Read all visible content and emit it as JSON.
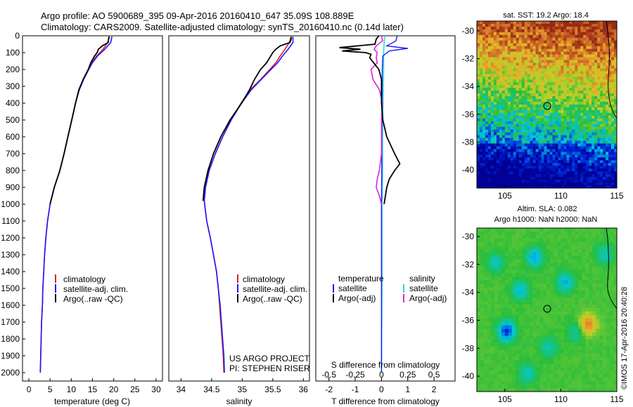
{
  "header": {
    "line1": "Argo profile: AO 5900689_395 09-Apr-2016 20160410_647 35.09S 108.889E",
    "line2": "Climatology: CARS2009. Satellite-adjusted climatology: synTS_20160410.nc (0.14d later)"
  },
  "depth_ticks": [
    "0",
    "100",
    "200",
    "300",
    "400",
    "500",
    "600",
    "700",
    "800",
    "900",
    "1000",
    "1100",
    "1200",
    "1300",
    "1400",
    "1500",
    "1600",
    "1700",
    "1800",
    "1900",
    "2000"
  ],
  "colors": {
    "climatology": "#e02020",
    "satellite": "#1a1aff",
    "argo": "#000000",
    "sal_satellite": "#22dddd",
    "sal_argo": "#dd22dd"
  },
  "chart_data": [
    {
      "type": "line",
      "xlabel": "temperature (deg C)",
      "xlim": [
        -1.5,
        31.5
      ],
      "ylim": [
        2050,
        0
      ],
      "xticks": [
        "0",
        "5",
        "10",
        "15",
        "20",
        "25",
        "30"
      ],
      "legend": [
        "climatology",
        "satellite-adj. clim.",
        "Argo(..raw -QC)"
      ],
      "series": [
        {
          "name": "climatology",
          "depth": [
            5,
            40,
            80,
            120,
            160,
            200,
            260,
            320,
            400,
            500,
            600,
            700,
            800,
            900,
            1000,
            1100,
            1200,
            1300,
            1400,
            1500,
            1600,
            1700,
            1800,
            1900,
            2000
          ],
          "values": [
            19.0,
            18.6,
            17.5,
            16.0,
            14.8,
            14.0,
            12.8,
            11.8,
            11.0,
            10.1,
            9.2,
            8.3,
            7.3,
            6.0,
            5.0,
            4.4,
            4.0,
            3.7,
            3.5,
            3.3,
            3.2,
            3.0,
            2.9,
            2.8,
            2.7
          ]
        },
        {
          "name": "satellite-adj. clim.",
          "depth": [
            5,
            40,
            80,
            120,
            160,
            200,
            260,
            320,
            400,
            500,
            600,
            700,
            800,
            900,
            1000,
            1100,
            1200,
            1300,
            1400,
            1500,
            1600,
            1700,
            1800,
            1900,
            2000
          ],
          "values": [
            19.6,
            19.3,
            17.9,
            16.2,
            15.0,
            14.1,
            12.9,
            11.9,
            11.0,
            10.1,
            9.2,
            8.3,
            7.3,
            6.0,
            5.0,
            4.4,
            4.0,
            3.7,
            3.5,
            3.3,
            3.2,
            3.0,
            2.9,
            2.8,
            2.7
          ]
        },
        {
          "name": "Argo(..raw -QC)",
          "depth": [
            5,
            20,
            40,
            60,
            80,
            100,
            120,
            160,
            200,
            260,
            320,
            400,
            500,
            600,
            700,
            800,
            900,
            1000
          ],
          "values": [
            18.9,
            18.8,
            18.7,
            17.3,
            16.4,
            16.1,
            15.5,
            14.6,
            14.0,
            12.8,
            11.8,
            11.0,
            10.1,
            9.2,
            8.3,
            7.3,
            6.0,
            5.0
          ]
        }
      ]
    },
    {
      "type": "line",
      "xlabel": "salinity",
      "xlim": [
        33.8,
        36.1
      ],
      "ylim": [
        2050,
        0
      ],
      "xticks": [
        "34",
        "34.5",
        "35",
        "35.5",
        "36"
      ],
      "legend": [
        "climatology",
        "satellite-adj. clim.",
        "Argo(..raw -QC)"
      ],
      "annotation": [
        "US ARGO PROJECT",
        "PI: STEPHEN RISER"
      ],
      "series": [
        {
          "name": "climatology",
          "depth": [
            5,
            40,
            80,
            120,
            160,
            200,
            260,
            320,
            400,
            500,
            600,
            700,
            800,
            900,
            980,
            1100,
            1200,
            1300,
            1400,
            1500,
            1600,
            1700,
            1800,
            1900,
            2000
          ],
          "values": [
            35.8,
            35.77,
            35.7,
            35.62,
            35.55,
            35.45,
            35.3,
            35.13,
            34.98,
            34.82,
            34.68,
            34.56,
            34.46,
            34.4,
            34.38,
            34.42,
            34.48,
            34.53,
            34.58,
            34.61,
            34.63,
            34.65,
            34.67,
            34.69,
            34.7
          ]
        },
        {
          "name": "satellite-adj. clim.",
          "depth": [
            5,
            40,
            80,
            120,
            160,
            200,
            260,
            320,
            400,
            500,
            600,
            700,
            800,
            900,
            980,
            1100,
            1200,
            1300,
            1400,
            1500,
            1600,
            1700,
            1800,
            1900,
            2000
          ],
          "values": [
            35.83,
            35.83,
            35.75,
            35.66,
            35.58,
            35.47,
            35.31,
            35.15,
            34.99,
            34.82,
            34.68,
            34.56,
            34.46,
            34.4,
            34.38,
            34.42,
            34.48,
            34.53,
            34.58,
            34.61,
            34.64,
            34.66,
            34.68,
            34.7,
            34.71
          ]
        },
        {
          "name": "Argo(..raw -QC)",
          "depth": [
            5,
            20,
            40,
            60,
            80,
            100,
            130,
            160,
            200,
            260,
            320,
            400,
            500,
            600,
            700,
            800,
            900,
            980
          ],
          "values": [
            35.8,
            35.8,
            35.78,
            35.62,
            35.55,
            35.5,
            35.45,
            35.4,
            35.3,
            35.2,
            35.12,
            34.99,
            34.8,
            34.65,
            34.53,
            34.44,
            34.38,
            34.36
          ]
        }
      ]
    },
    {
      "type": "line",
      "xlabel": "T difference from climatology",
      "x2label": "S difference from climatology",
      "xlim": [
        -2.5,
        2.8
      ],
      "x2lim": [
        -0.625,
        0.7
      ],
      "ylim": [
        2050,
        0
      ],
      "xticks": [
        "-2",
        "-1",
        "0",
        "1",
        "2"
      ],
      "x2ticks": [
        "-0.5",
        "-0.25",
        "0",
        "0.25",
        "0.5"
      ],
      "legend_titles": [
        "temperature",
        "salinity"
      ],
      "legend": [
        "satellite",
        "Argo(-adj)",
        "satellite",
        "Argo(-adj)"
      ],
      "series": [
        {
          "name": "T satellite",
          "depth": [
            0,
            30,
            60,
            75,
            90,
            120,
            200,
            400,
            600,
            800,
            1000,
            1500,
            2000
          ],
          "values": [
            0.6,
            0.55,
            0.2,
            1.0,
            0.3,
            0.05,
            0.03,
            0.02,
            0.01,
            0.01,
            0.0,
            0.0,
            0.0
          ]
        },
        {
          "name": "T Argo(-adj)",
          "depth": [
            0,
            20,
            50,
            70,
            80,
            90,
            100,
            110,
            130,
            160,
            200,
            260,
            320,
            400,
            500,
            600,
            700,
            760,
            800,
            850,
            900,
            950,
            1000
          ],
          "values": [
            -0.1,
            -0.2,
            -0.25,
            -1.6,
            -0.8,
            -1.5,
            -0.6,
            -0.4,
            -0.45,
            -0.3,
            -0.1,
            0.0,
            0.0,
            0.0,
            0.05,
            0.2,
            0.5,
            0.7,
            0.5,
            0.3,
            0.2,
            0.15,
            0.1
          ]
        },
        {
          "name": "S satellite",
          "depth": [
            0,
            100,
            200,
            400,
            600,
            800,
            1000,
            1500,
            2000
          ],
          "values": [
            0.03,
            0.02,
            0.02,
            0.015,
            0.01,
            0.01,
            0.005,
            0.005,
            0.0
          ]
        },
        {
          "name": "S Argo(-adj)",
          "depth": [
            0,
            30,
            60,
            80,
            100,
            130,
            160,
            200,
            260,
            320,
            400,
            500,
            600,
            700,
            800,
            850,
            900,
            950,
            1000
          ],
          "values": [
            0.0,
            0.01,
            -0.05,
            -0.07,
            -0.04,
            -0.05,
            -0.04,
            -0.1,
            -0.08,
            -0.02,
            0.01,
            0.0,
            0.0,
            0.0,
            -0.02,
            -0.04,
            -0.05,
            -0.02,
            0.0
          ]
        }
      ]
    },
    {
      "type": "heatmap",
      "title": "sat. SST: 19.2 Argo: 18.4",
      "xlim": [
        102.5,
        115
      ],
      "ylim": [
        -41.3,
        -29.3
      ],
      "xticks": [
        "105",
        "110",
        "115"
      ],
      "yticks": [
        "-30",
        "-32",
        "-34",
        "-36",
        "-38",
        "-40"
      ],
      "marker": [
        108.889,
        -35.09
      ]
    },
    {
      "type": "heatmap",
      "title": "Altim. SLA: 0.082",
      "subtitle": "Argo h1000: NaN h2000: NaN",
      "xlim": [
        102.5,
        115
      ],
      "ylim": [
        -41.1,
        -29.4
      ],
      "xticks": [
        "105",
        "110",
        "115"
      ],
      "yticks": [
        "-30",
        "-32",
        "-34",
        "-36",
        "-38",
        "-40"
      ],
      "marker": [
        108.889,
        -35.09
      ]
    }
  ],
  "footer": "©IMOS 17-Apr-2016 20:40:28"
}
